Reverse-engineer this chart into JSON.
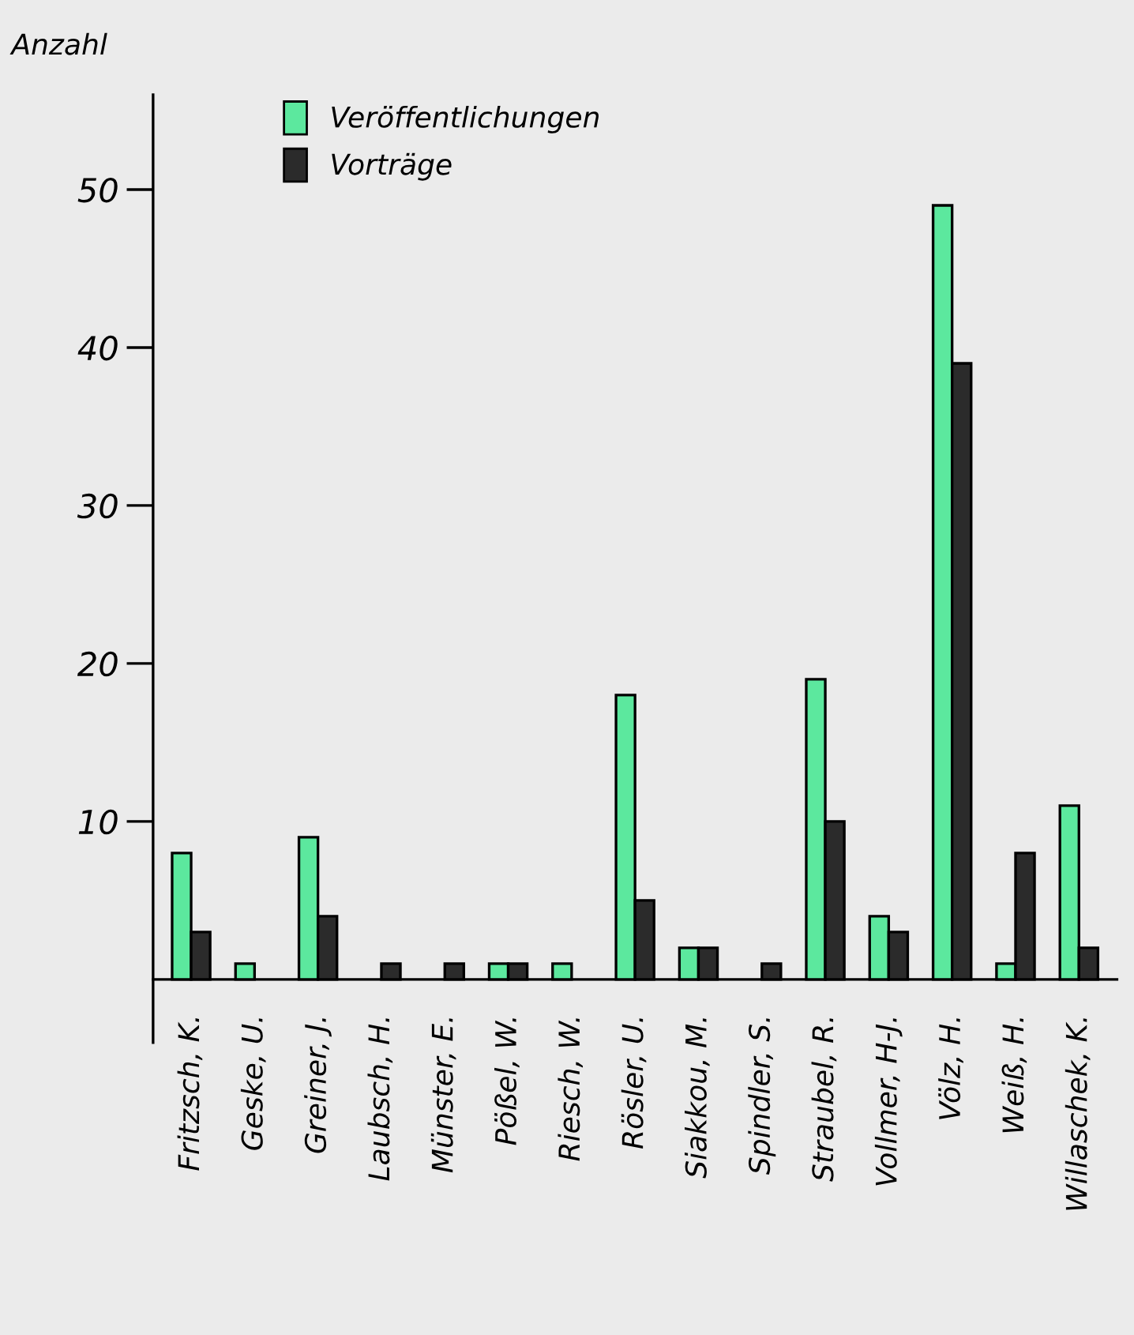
{
  "chart_data": {
    "type": "bar",
    "ylabel": "Anzahl",
    "categories": [
      "Fritzsch, K.",
      "Geske, U.",
      "Greiner, J.",
      "Laubsch, H.",
      "Münster, E.",
      "Pößel, W.",
      "Riesch, W.",
      "Rösler, U.",
      "Siakkou, M.",
      "Spindler, S.",
      "Straubel, R.",
      "Vollmer, H-J.",
      "Völz, H.",
      "Weiß, H.",
      "Willaschek, K."
    ],
    "series": [
      {
        "name": "Veröffentlichungen",
        "color": "#5ce89e",
        "values": [
          8,
          1,
          9,
          null,
          null,
          1,
          1,
          18,
          2,
          null,
          19,
          4,
          49,
          1,
          11
        ]
      },
      {
        "name": "Vorträge",
        "color": "#2b2b2b",
        "values": [
          3,
          null,
          4,
          1,
          1,
          1,
          null,
          5,
          2,
          1,
          10,
          3,
          39,
          8,
          2
        ]
      }
    ],
    "ylim": [
      -4,
      56
    ],
    "yticks": [
      10,
      20,
      30,
      40,
      50
    ],
    "grid": false,
    "legend": "top"
  }
}
